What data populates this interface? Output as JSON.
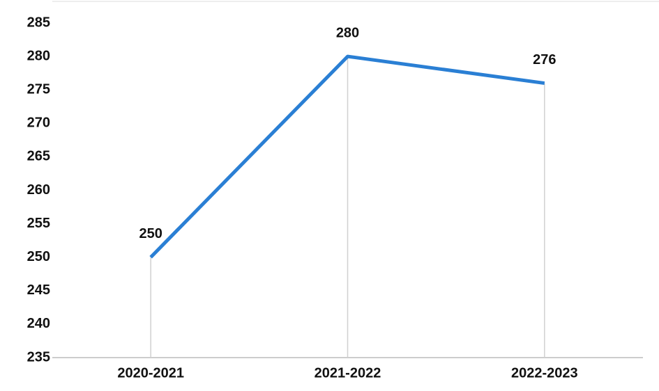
{
  "chart_data": {
    "type": "line",
    "categories": [
      "2020-2021",
      "2021-2022",
      "2022-2023"
    ],
    "values": [
      250,
      280,
      276
    ],
    "color": "#2a7fd4",
    "ylim": [
      235,
      285
    ],
    "yticks": [
      235,
      240,
      245,
      250,
      255,
      260,
      265,
      270,
      275,
      280,
      285
    ]
  }
}
